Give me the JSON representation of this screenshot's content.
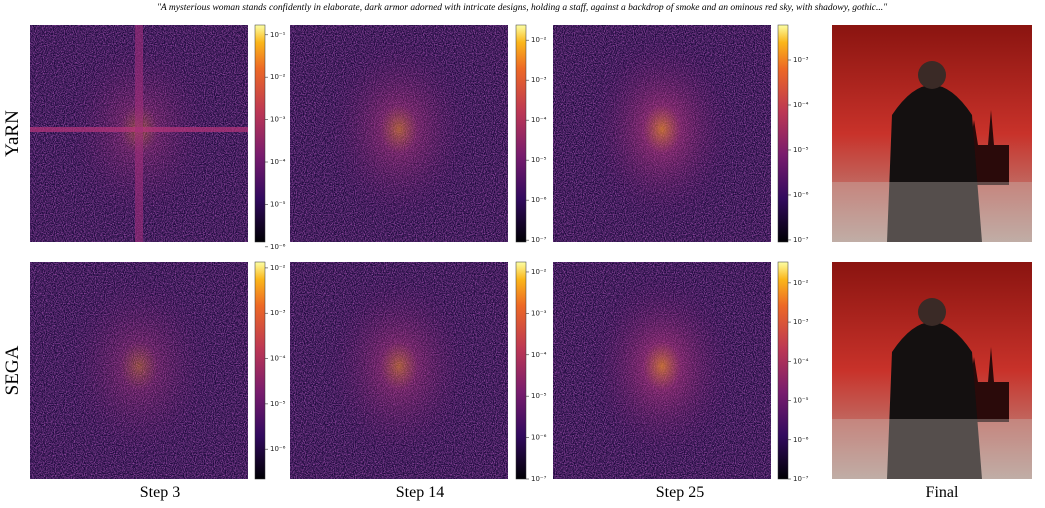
{
  "caption": "\"A mysterious woman stands confidently in elaborate, dark armor adorned with intricate designs, holding a staff, against a backdrop of smoke and an ominous red sky, with shadowy, gothic...\"",
  "row_labels": [
    "YaRN",
    "SEGA"
  ],
  "column_labels": [
    "Step 3",
    "Step 14",
    "Step 25",
    "Final"
  ],
  "colorbars": [
    [
      {
        "lim": [
          1.3e-06,
          0.17
        ],
        "ticks": [
          {
            "value": 0.1,
            "label": "10⁻¹"
          },
          {
            "value": 0.01,
            "label": "10⁻²"
          },
          {
            "value": 0.001,
            "label": "10⁻³"
          },
          {
            "value": 0.0001,
            "label": "10⁻⁴"
          },
          {
            "value": 1e-05,
            "label": "10⁻⁵"
          },
          {
            "value": 1e-06,
            "label": "10⁻⁶"
          }
        ]
      },
      {
        "lim": [
          9e-08,
          0.024
        ],
        "ticks": [
          {
            "value": 0.01,
            "label": "10⁻²"
          },
          {
            "value": 0.001,
            "label": "10⁻³"
          },
          {
            "value": 0.0001,
            "label": "10⁻⁴"
          },
          {
            "value": 1e-05,
            "label": "10⁻⁵"
          },
          {
            "value": 1e-06,
            "label": "10⁻⁶"
          },
          {
            "value": 1e-07,
            "label": "10⁻⁷"
          }
        ]
      },
      {
        "lim": [
          9e-08,
          0.006
        ],
        "ticks": [
          {
            "value": 0.001,
            "label": "10⁻³"
          },
          {
            "value": 0.0001,
            "label": "10⁻⁴"
          },
          {
            "value": 1e-05,
            "label": "10⁻⁵"
          },
          {
            "value": 1e-06,
            "label": "10⁻⁶"
          },
          {
            "value": 1e-07,
            "label": "10⁻⁷"
          }
        ]
      }
    ],
    [
      {
        "lim": [
          2.2e-07,
          0.0135
        ],
        "ticks": [
          {
            "value": 0.01,
            "label": "10⁻²"
          },
          {
            "value": 0.001,
            "label": "10⁻³"
          },
          {
            "value": 0.0001,
            "label": "10⁻⁴"
          },
          {
            "value": 1e-05,
            "label": "10⁻⁵"
          },
          {
            "value": 1e-06,
            "label": "10⁻⁶"
          }
        ]
      },
      {
        "lim": [
          1e-07,
          0.0174
        ],
        "ticks": [
          {
            "value": 0.01,
            "label": "10⁻²"
          },
          {
            "value": 0.001,
            "label": "10⁻³"
          },
          {
            "value": 0.0001,
            "label": "10⁻⁴"
          },
          {
            "value": 1e-05,
            "label": "10⁻⁵"
          },
          {
            "value": 1e-06,
            "label": "10⁻⁶"
          },
          {
            "value": 1e-07,
            "label": "10⁻⁷"
          }
        ]
      },
      {
        "lim": [
          1e-07,
          0.034
        ],
        "ticks": [
          {
            "value": 0.01,
            "label": "10⁻²"
          },
          {
            "value": 0.001,
            "label": "10⁻³"
          },
          {
            "value": 0.0001,
            "label": "10⁻⁴"
          },
          {
            "value": 1e-05,
            "label": "10⁻⁵"
          },
          {
            "value": 1e-06,
            "label": "10⁻⁶"
          },
          {
            "value": 1e-07,
            "label": "10⁻⁷"
          }
        ]
      }
    ]
  ]
}
